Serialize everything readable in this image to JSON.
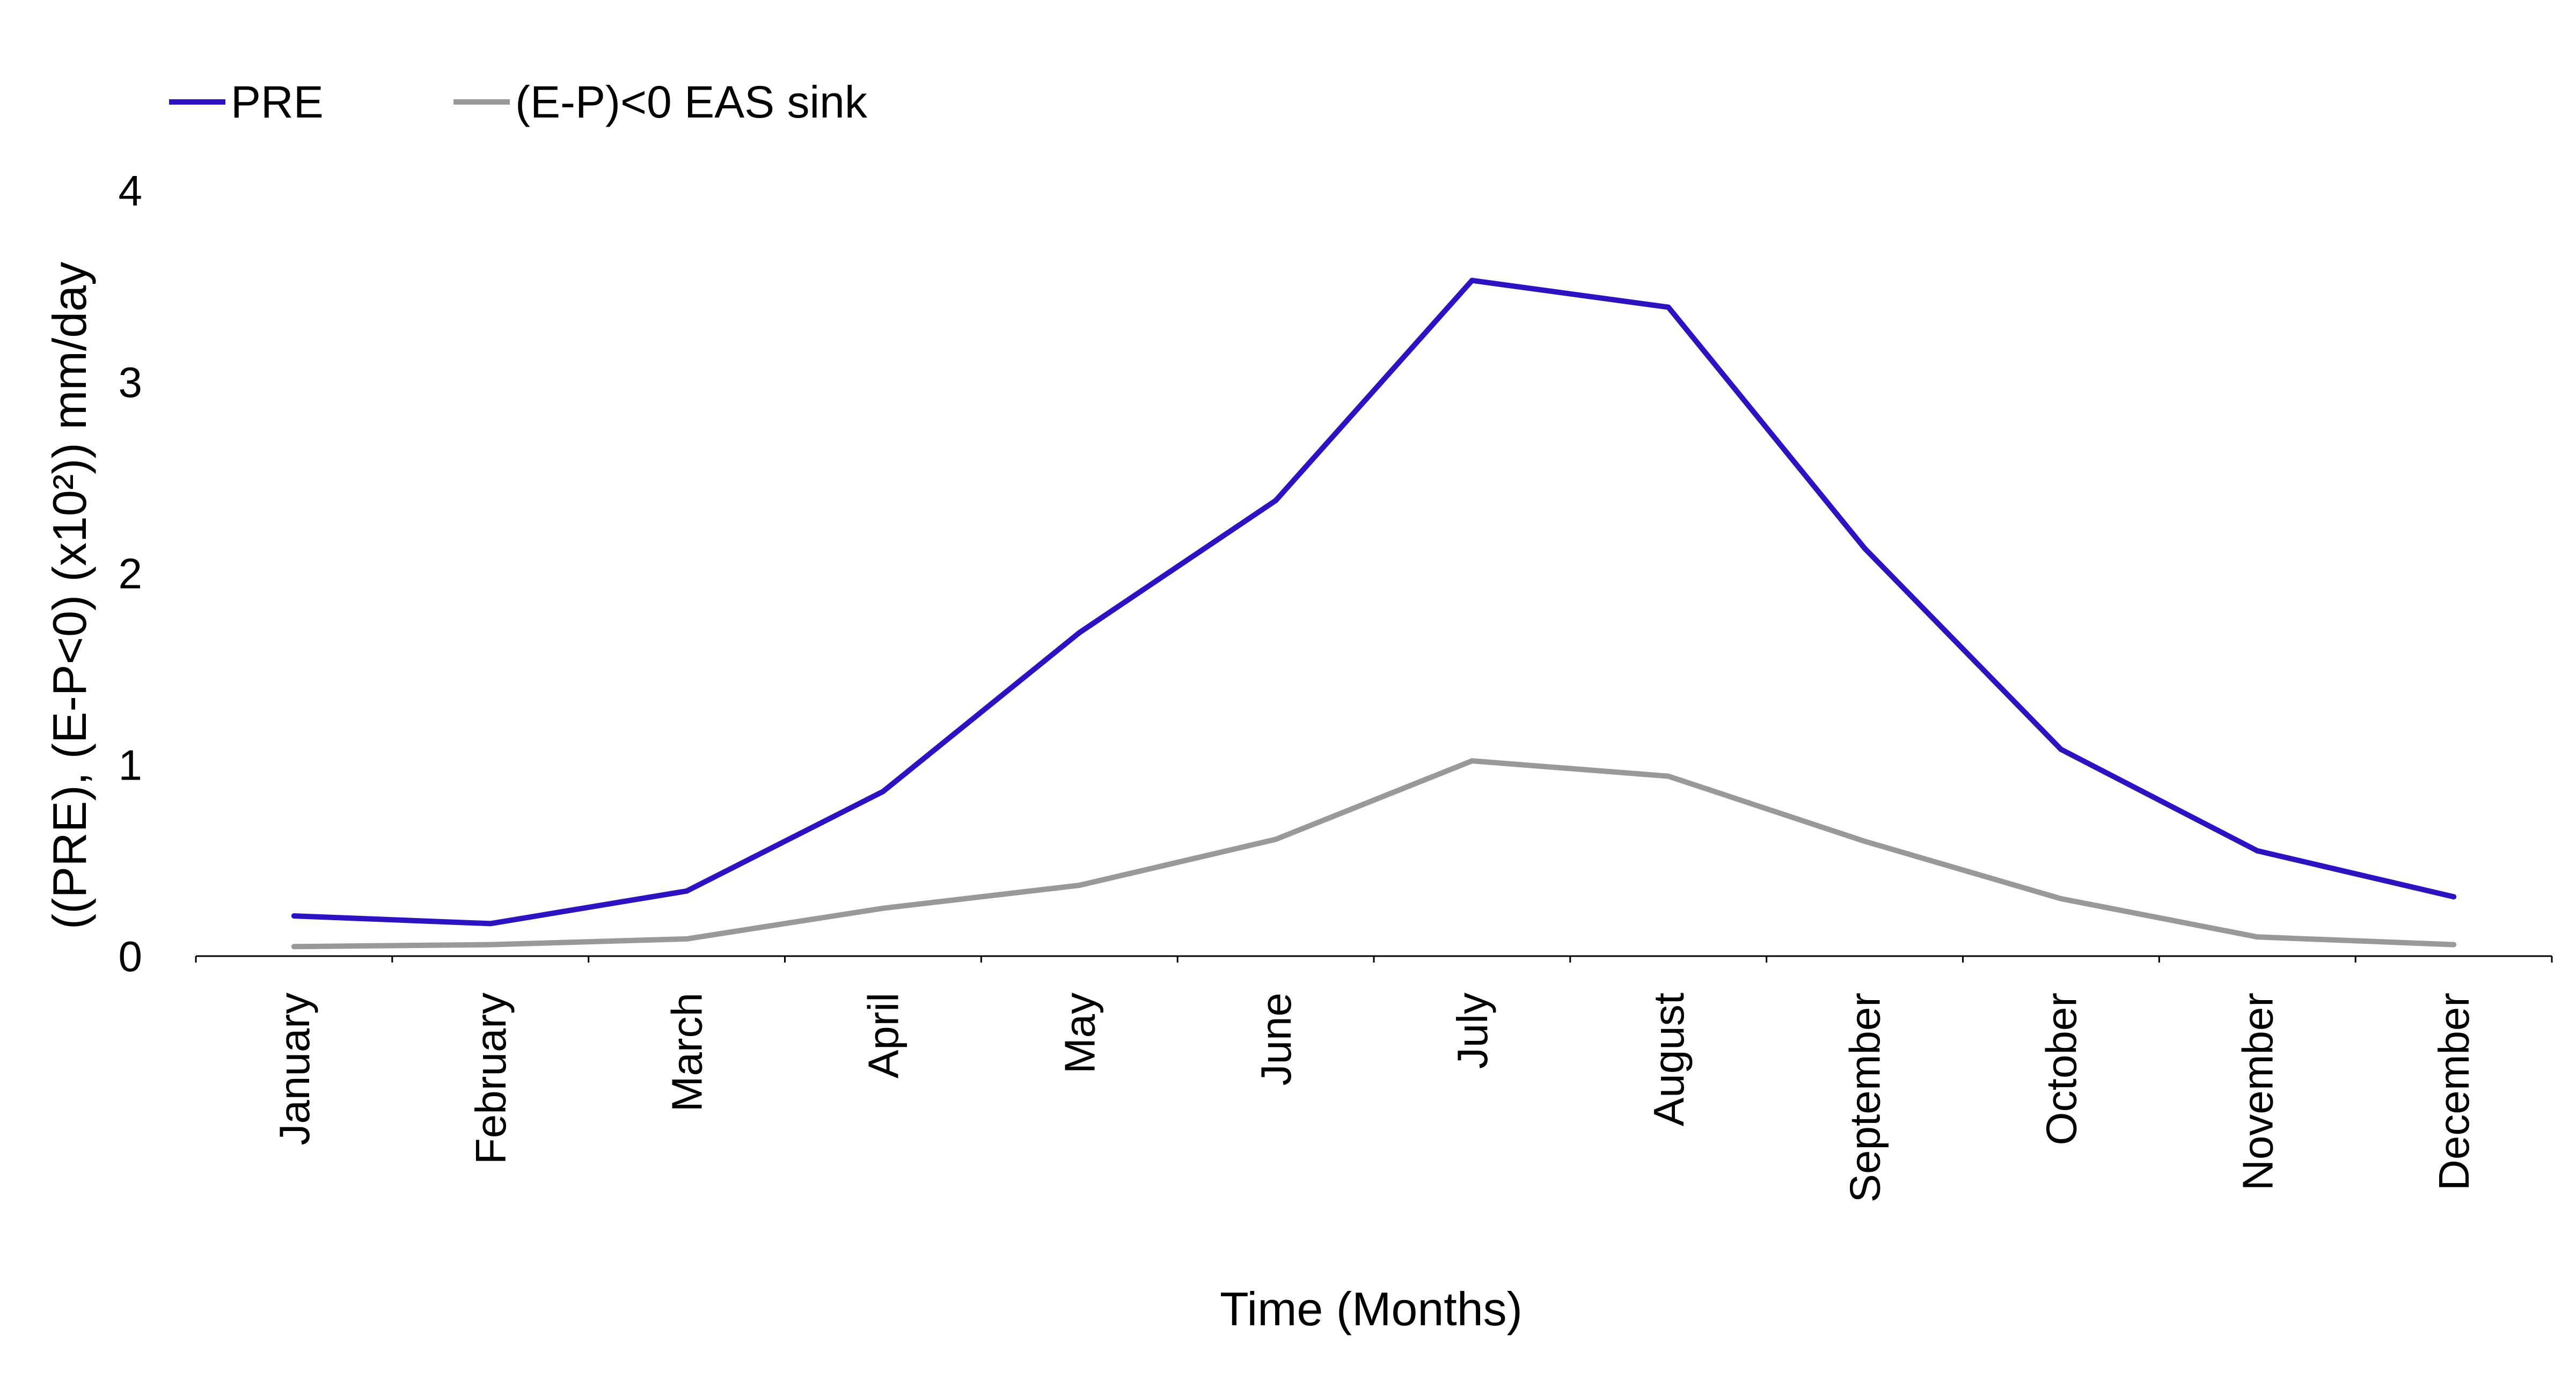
{
  "chart_data": {
    "type": "line",
    "title": "",
    "xlabel": "Time (Months)",
    "ylabel": "((PRE), (E-P<0) (x10²)) mm/day",
    "categories": [
      "January",
      "February",
      "March",
      "April",
      "May",
      "June",
      "July",
      "August",
      "September",
      "October",
      "November",
      "December"
    ],
    "ylim": [
      0,
      4
    ],
    "yticks": [
      0,
      1,
      2,
      3,
      4
    ],
    "grid": false,
    "legend_position": "top-left",
    "series": [
      {
        "name": "PRE",
        "color": "#2b13c2",
        "values": [
          0.21,
          0.17,
          0.34,
          0.86,
          1.69,
          2.38,
          3.53,
          3.39,
          2.13,
          1.08,
          0.55,
          0.31
        ]
      },
      {
        "name": "(E-P)<0  EAS sink",
        "color": "#999999",
        "values": [
          0.05,
          0.06,
          0.09,
          0.25,
          0.37,
          0.61,
          1.02,
          0.94,
          0.6,
          0.3,
          0.1,
          0.06
        ]
      }
    ]
  }
}
